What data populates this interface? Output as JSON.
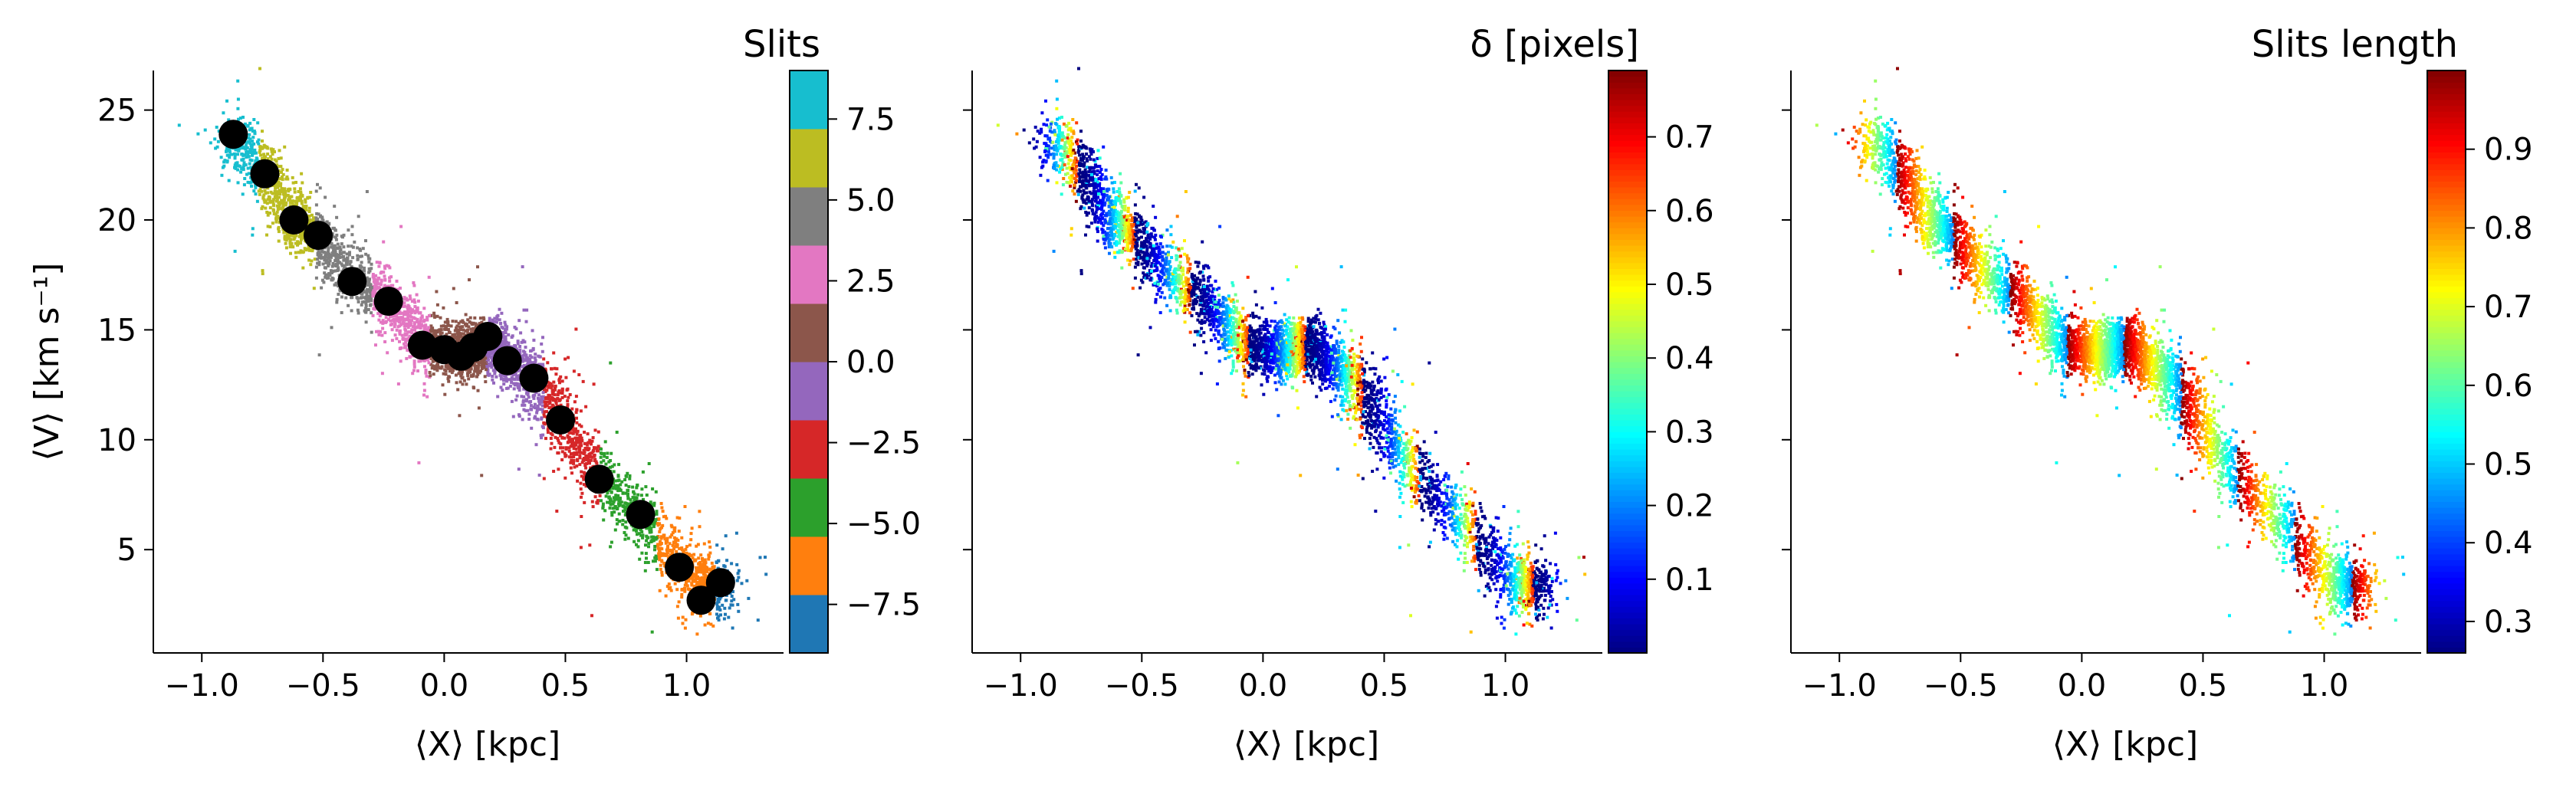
{
  "chart_data": [
    {
      "type": "scatter",
      "xlabel": "⟨X⟩ [kpc]",
      "ylabel": "⟨V⟩ [km s⁻¹]",
      "xlim": [
        -1.2,
        1.4
      ],
      "ylim": [
        0.3,
        26.8
      ],
      "x_ticks": [
        -1.0,
        -0.5,
        0.0,
        0.5,
        1.0
      ],
      "x_tick_labels": [
        "−1.0",
        "−0.5",
        "0.0",
        "0.5",
        "1.0"
      ],
      "y_ticks": [
        5,
        10,
        15,
        20,
        25
      ],
      "y_tick_labels": [
        "5",
        "10",
        "15",
        "20",
        "25"
      ],
      "colorbar": {
        "title": "Slits",
        "range": [
          -9,
          9
        ],
        "ticks": [
          -7.5,
          -5.0,
          -2.5,
          0.0,
          2.5,
          5.0,
          7.5
        ],
        "tick_labels": [
          "−7.5",
          "−5.0",
          "−2.5",
          "0.0",
          "2.5",
          "5.0",
          "7.5"
        ],
        "colors": [
          "#1f77b4",
          "#ff7f0e",
          "#2ca02c",
          "#d62728",
          "#9467bd",
          "#8c564b",
          "#e377c2",
          "#7f7f7f",
          "#bcbd22",
          "#17becf"
        ]
      },
      "slit_centers": [
        {
          "x": -0.87,
          "y": 23.9
        },
        {
          "x": -0.74,
          "y": 22.1
        },
        {
          "x": -0.62,
          "y": 20.0
        },
        {
          "x": -0.52,
          "y": 19.3
        },
        {
          "x": -0.38,
          "y": 17.2
        },
        {
          "x": -0.23,
          "y": 16.3
        },
        {
          "x": -0.09,
          "y": 14.3
        },
        {
          "x": 0.0,
          "y": 14.1
        },
        {
          "x": 0.07,
          "y": 13.8
        },
        {
          "x": 0.12,
          "y": 14.2
        },
        {
          "x": 0.18,
          "y": 14.7
        },
        {
          "x": 0.26,
          "y": 13.6
        },
        {
          "x": 0.37,
          "y": 12.8
        },
        {
          "x": 0.48,
          "y": 10.9
        },
        {
          "x": 0.64,
          "y": 8.2
        },
        {
          "x": 0.81,
          "y": 6.6
        },
        {
          "x": 0.97,
          "y": 4.2
        },
        {
          "x": 1.14,
          "y": 3.5
        },
        {
          "x": 1.06,
          "y": 2.7
        }
      ]
    },
    {
      "type": "scatter",
      "xlabel": "⟨X⟩ [kpc]",
      "xlim": [
        -1.2,
        1.4
      ],
      "ylim": [
        0.3,
        26.8
      ],
      "x_ticks": [
        -1.0,
        -0.5,
        0.0,
        0.5,
        1.0
      ],
      "x_tick_labels": [
        "−1.0",
        "−0.5",
        "0.0",
        "0.5",
        "1.0"
      ],
      "colorbar": {
        "title": "δ [pixels]",
        "range": [
          0.0,
          0.79
        ],
        "ticks": [
          0.1,
          0.2,
          0.3,
          0.4,
          0.5,
          0.6,
          0.7
        ],
        "tick_labels": [
          "0.1",
          "0.2",
          "0.3",
          "0.4",
          "0.5",
          "0.6",
          "0.7"
        ],
        "colormap": "jet"
      }
    },
    {
      "type": "scatter",
      "xlabel": "⟨X⟩ [kpc]",
      "xlim": [
        -1.2,
        1.4
      ],
      "ylim": [
        0.3,
        26.8
      ],
      "x_ticks": [
        -1.0,
        -0.5,
        0.0,
        0.5,
        1.0
      ],
      "x_tick_labels": [
        "−1.0",
        "−0.5",
        "0.0",
        "0.5",
        "1.0"
      ],
      "colorbar": {
        "title": "Slits length",
        "range": [
          0.26,
          1.0
        ],
        "ticks": [
          0.3,
          0.4,
          0.5,
          0.6,
          0.7,
          0.8,
          0.9
        ],
        "tick_labels": [
          "0.3",
          "0.4",
          "0.5",
          "0.6",
          "0.7",
          "0.8",
          "0.9"
        ],
        "colormap": "jet"
      }
    }
  ]
}
